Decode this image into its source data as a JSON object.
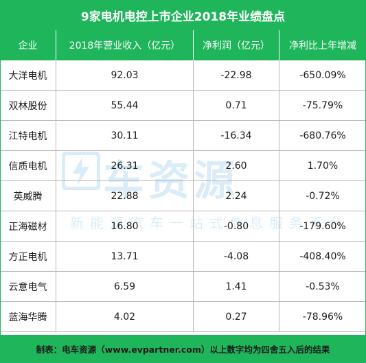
{
  "title": "9家电机电控上市企业2018年业绩盘点",
  "colors": {
    "header_bg": "#1fb55b",
    "header_text": "#ffffff",
    "grid": "#b5b5b5",
    "watermark": "#1a8fd8"
  },
  "watermark": {
    "main": "车资源",
    "sub": "新能源汽车一站式信息服务平台"
  },
  "footer": "制表：电车资源（www.evpartner.com）以上数字均为四舍五入后的结果",
  "chart_data": {
    "type": "table",
    "title": "9家电机电控上市企业2018年业绩盘点",
    "columns": [
      "企业",
      "2018年营业收入（亿元）",
      "净利润（亿元）",
      "净利比上年增减"
    ],
    "rows": [
      [
        "大洋电机",
        "92.03",
        "-22.98",
        "-650.09%"
      ],
      [
        "双林股份",
        "55.44",
        "0.71",
        "-75.79%"
      ],
      [
        "江特电机",
        "30.11",
        "-16.34",
        "-680.76%"
      ],
      [
        "信质电机",
        "26.31",
        "2.60",
        "1.70%"
      ],
      [
        "英威腾",
        "22.88",
        "2.24",
        "-0.72%"
      ],
      [
        "正海磁材",
        "16.80",
        "-0.80",
        "-179.60%"
      ],
      [
        "方正电机",
        "13.71",
        "-4.08",
        "-408.40%"
      ],
      [
        "云意电气",
        "6.59",
        "1.41",
        "-0.53%"
      ],
      [
        "蓝海华腾",
        "4.02",
        "0.27",
        "-78.96%"
      ]
    ]
  }
}
